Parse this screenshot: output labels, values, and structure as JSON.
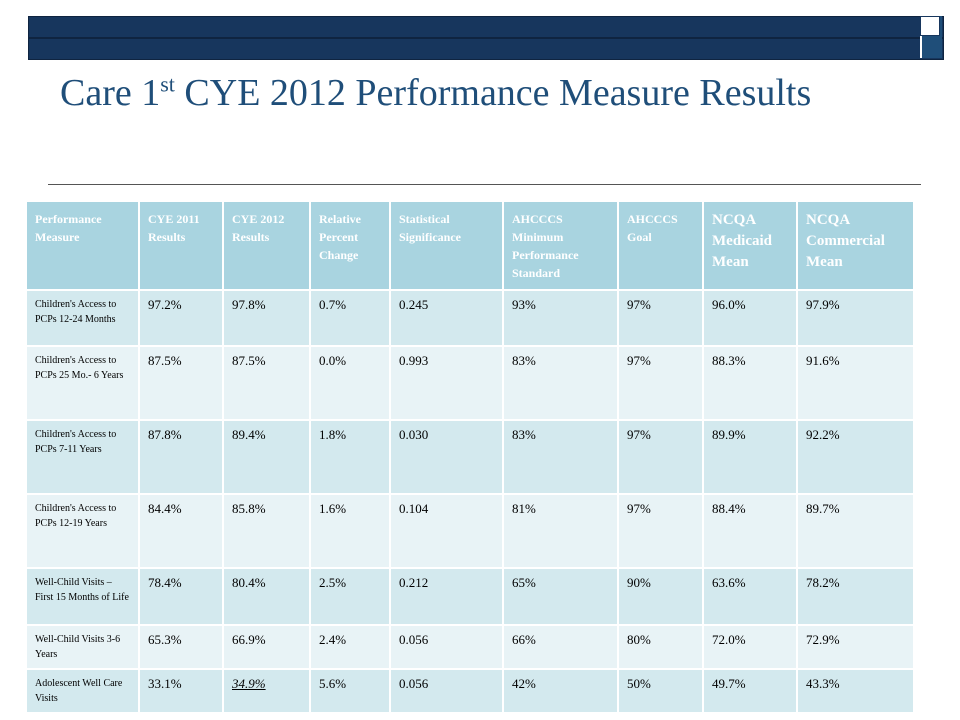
{
  "title": {
    "part1": "Care 1",
    "superscript": "st",
    "part2": " CYE 2012 Performance Measure Results"
  },
  "table": {
    "headers": [
      "Performance Measure",
      "CYE 2011 Results",
      "CYE 2012 Results",
      "Relative Percent Change",
      "Statistical Significance",
      "AHCCCS Minimum Performance Standard",
      "AHCCCS Goal",
      "NCQA Medicaid Mean",
      "NCQA Commercial Mean"
    ],
    "rows": [
      {
        "measure": "Children's Access to PCPs 12-24 Months",
        "cye2011": "97.2%",
        "cye2012": "97.8%",
        "change": "0.7%",
        "significance": "0.245",
        "min_standard": "93%",
        "goal": "97%",
        "medicaid_mean": "96.0%",
        "commercial_mean": "97.9%"
      },
      {
        "measure": "Children's Access to PCPs 25 Mo.- 6 Years",
        "cye2011": "87.5%",
        "cye2012": "87.5%",
        "change": "0.0%",
        "significance": "0.993",
        "min_standard": "83%",
        "goal": "97%",
        "medicaid_mean": "88.3%",
        "commercial_mean": "91.6%"
      },
      {
        "measure": "Children's Access to PCPs 7-11 Years",
        "cye2011": "87.8%",
        "cye2012": "89.4%",
        "change": "1.8%",
        "significance": "0.030",
        "min_standard": "83%",
        "goal": "97%",
        "medicaid_mean": "89.9%",
        "commercial_mean": "92.2%"
      },
      {
        "measure": "Children's Access to PCPs 12-19 Years",
        "cye2011": "84.4%",
        "cye2012": "85.8%",
        "change": "1.6%",
        "significance": "0.104",
        "min_standard": "81%",
        "goal": "97%",
        "medicaid_mean": "88.4%",
        "commercial_mean": "89.7%"
      },
      {
        "measure": "Well-Child Visits – First 15 Months of Life",
        "cye2011": "78.4%",
        "cye2012": "80.4%",
        "change": "2.5%",
        "significance": "0.212",
        "min_standard": "65%",
        "goal": "90%",
        "medicaid_mean": "63.6%",
        "commercial_mean": "78.2%"
      },
      {
        "measure": "Well-Child Visits 3-6 Years",
        "cye2011": "65.3%",
        "cye2012": "66.9%",
        "change": "2.4%",
        "significance": "0.056",
        "min_standard": "66%",
        "goal": "80%",
        "medicaid_mean": "72.0%",
        "commercial_mean": "72.9%"
      },
      {
        "measure": "Adolescent Well Care Visits",
        "cye2011": "33.1%",
        "cye2012": "34.9%",
        "change": "5.6%",
        "significance": "0.056",
        "min_standard": "42%",
        "goal": "50%",
        "medicaid_mean": "49.7%",
        "commercial_mean": "43.3%"
      }
    ]
  },
  "colors": {
    "title": "#1f4e79",
    "banner": "#17365d",
    "header_fill": "#a9d4e0",
    "row_fill_odd": "#d3e9ee",
    "row_fill_even": "#e8f3f6"
  }
}
